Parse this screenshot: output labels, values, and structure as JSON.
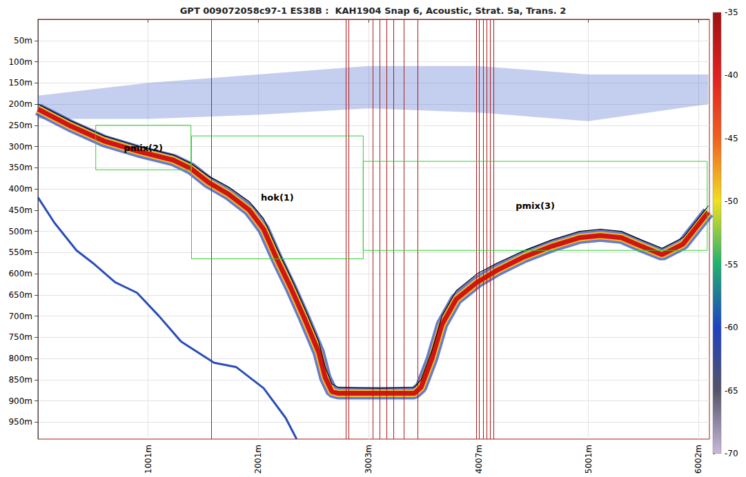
{
  "chart_data": {
    "type": "echogram",
    "title": "GPT 009072058c97-1 ES38B :  KAH1904 Snap 6, Acoustic, Strat. 5a, Trans. 2",
    "xlim": [
      0,
      6100
    ],
    "xticks": [
      {
        "value": 1001,
        "label": "1001m"
      },
      {
        "value": 2001,
        "label": "2001m"
      },
      {
        "value": 3003,
        "label": "3003m"
      },
      {
        "value": 4007,
        "label": "4007m"
      },
      {
        "value": 5001,
        "label": "5001m"
      },
      {
        "value": 6002,
        "label": "6002m"
      }
    ],
    "ylim": [
      0,
      990
    ],
    "yticks": [
      {
        "value": 50,
        "label": "50m"
      },
      {
        "value": 100,
        "label": "100m"
      },
      {
        "value": 150,
        "label": "150m"
      },
      {
        "value": 200,
        "label": "200m"
      },
      {
        "value": 250,
        "label": "250m"
      },
      {
        "value": 300,
        "label": "300m"
      },
      {
        "value": 350,
        "label": "350m"
      },
      {
        "value": 400,
        "label": "400m"
      },
      {
        "value": 450,
        "label": "450m"
      },
      {
        "value": 500,
        "label": "500m"
      },
      {
        "value": 550,
        "label": "550m"
      },
      {
        "value": 600,
        "label": "600m"
      },
      {
        "value": 650,
        "label": "650m"
      },
      {
        "value": 700,
        "label": "700m"
      },
      {
        "value": 750,
        "label": "750m"
      },
      {
        "value": 800,
        "label": "800m"
      },
      {
        "value": 850,
        "label": "850m"
      },
      {
        "value": 900,
        "label": "900m"
      },
      {
        "value": 950,
        "label": "950m"
      }
    ],
    "grid": true,
    "series": [
      {
        "type": "band",
        "color": "#d01515",
        "x": [
          0,
          300,
          600,
          920,
          1230,
          1390,
          1550,
          1730,
          1920,
          2050,
          2170,
          2300,
          2420,
          2550,
          2610,
          2670,
          2730,
          3110,
          3420,
          3480,
          3580,
          3670,
          3800,
          3990,
          4170,
          4420,
          4670,
          4920,
          5110,
          5300,
          5480,
          5670,
          5860,
          6090
        ],
        "values": [
          212,
          252,
          287,
          312,
          332,
          352,
          385,
          412,
          450,
          495,
          565,
          635,
          705,
          785,
          845,
          878,
          882,
          882,
          882,
          868,
          800,
          720,
          660,
          620,
          592,
          560,
          535,
          515,
          510,
          515,
          535,
          555,
          530,
          455
        ]
      },
      {
        "type": "line",
        "color": "#2a4db8",
        "x": [
          0,
          150,
          350,
          500,
          700,
          900,
          1100,
          1300,
          1600,
          1800,
          2050,
          2250,
          2350
        ],
        "values": [
          420,
          480,
          545,
          575,
          620,
          645,
          700,
          760,
          810,
          820,
          870,
          940,
          990
        ]
      },
      {
        "type": "line",
        "color": "#000000",
        "x": [
          0,
          300,
          600,
          920,
          1230,
          1390,
          1550,
          1730,
          1920,
          2050,
          2170,
          2300,
          2420,
          2550,
          2610,
          2670,
          2730,
          3110,
          3420,
          3480,
          3580,
          3670,
          3800,
          3990,
          4170,
          4420,
          4670,
          4920,
          5110,
          5300,
          5480,
          5670,
          5860,
          6090
        ],
        "values": [
          200,
          240,
          275,
          300,
          320,
          340,
          370,
          395,
          430,
          470,
          540,
          610,
          680,
          760,
          820,
          860,
          868,
          870,
          868,
          850,
          780,
          700,
          640,
          600,
          575,
          545,
          520,
          500,
          495,
          500,
          520,
          540,
          515,
          440
        ]
      }
    ],
    "scattering_layer": {
      "color": "#3a5fcd",
      "x": [
        0,
        1000,
        2000,
        3000,
        4000,
        5000,
        6090
      ],
      "upper": [
        180,
        150,
        130,
        110,
        110,
        130,
        130
      ],
      "lower": [
        235,
        235,
        225,
        210,
        220,
        240,
        200
      ]
    },
    "regions": [
      {
        "label": "pmix(2)",
        "color": "#33cc33",
        "xlim": [
          525,
          1390
        ],
        "ylim": [
          250,
          355
        ]
      },
      {
        "label": "hok(1)",
        "color": "#33cc33",
        "xlim": [
          1395,
          2955
        ],
        "ylim": [
          275,
          565
        ]
      },
      {
        "label": "pmix(3)",
        "color": "#33cc33",
        "xlim": [
          2955,
          6080
        ],
        "ylim": [
          335,
          545
        ]
      }
    ],
    "vertical_lines": {
      "color": "#b01818",
      "x": [
        1575,
        2795,
        2825,
        3045,
        3105,
        3170,
        3230,
        3325,
        3450,
        3980,
        4010,
        4045,
        4075,
        4105,
        4140
      ]
    },
    "colorbar": {
      "range": [
        -70,
        -35
      ],
      "ticks": [
        -70,
        -65,
        -60,
        -55,
        -50,
        -45,
        -40,
        -35
      ],
      "colors": [
        "#c9b8dc",
        "#555566",
        "#2040c0",
        "#20b070",
        "#f0e020",
        "#f06020",
        "#e02020",
        "#a01010"
      ]
    }
  }
}
